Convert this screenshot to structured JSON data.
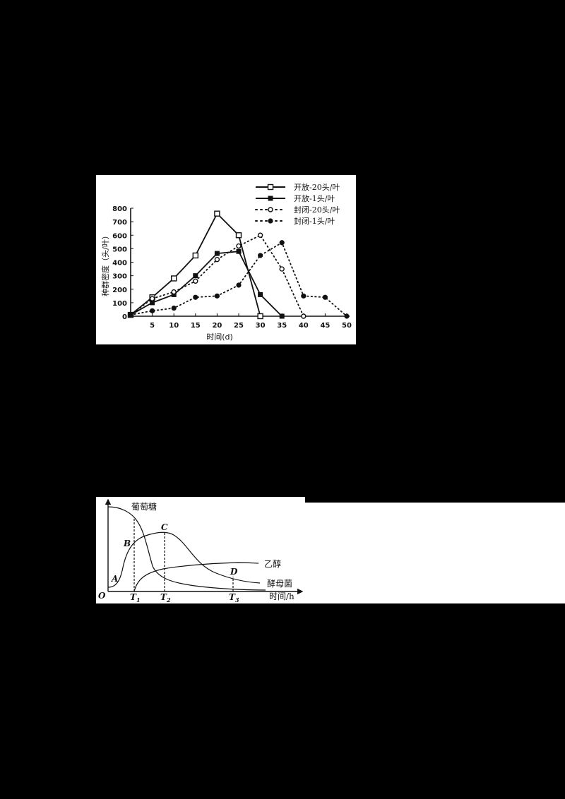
{
  "chart_data": [
    {
      "type": "line",
      "title": "",
      "xlabel": "时间(d)",
      "ylabel": "种群密度（头/叶）",
      "xlim": [
        0,
        50
      ],
      "ylim": [
        0,
        800
      ],
      "x_ticks": [
        5,
        10,
        15,
        20,
        25,
        30,
        35,
        40,
        45,
        50
      ],
      "y_ticks": [
        0,
        100,
        200,
        300,
        400,
        500,
        600,
        700,
        800
      ],
      "grid": false,
      "legend_position": "top-right",
      "series": [
        {
          "name": "开放-20头/叶",
          "style": "solid",
          "marker": "open-square",
          "x": [
            0,
            5,
            10,
            15,
            20,
            25,
            30
          ],
          "values": [
            10,
            140,
            280,
            450,
            760,
            600,
            0
          ]
        },
        {
          "name": "开放-1头/叶",
          "style": "solid",
          "marker": "filled-square",
          "x": [
            0,
            5,
            10,
            15,
            20,
            25,
            30,
            35
          ],
          "values": [
            10,
            100,
            160,
            300,
            465,
            480,
            160,
            0
          ]
        },
        {
          "name": "封闭-20头/叶",
          "style": "dotted",
          "marker": "open-circle",
          "x": [
            0,
            5,
            10,
            15,
            20,
            25,
            30,
            35,
            40
          ],
          "values": [
            10,
            130,
            180,
            260,
            420,
            520,
            600,
            350,
            0
          ]
        },
        {
          "name": "封闭-1头/叶",
          "style": "dotted",
          "marker": "filled-circle",
          "x": [
            0,
            5,
            10,
            15,
            20,
            25,
            30,
            35,
            40,
            45,
            50
          ],
          "values": [
            10,
            40,
            60,
            140,
            150,
            230,
            450,
            545,
            150,
            140,
            0
          ]
        }
      ]
    },
    {
      "type": "line",
      "title": "",
      "xlabel": "时间/h",
      "ylabel": "",
      "origin_label": "O",
      "x_markers": [
        "T1",
        "T2",
        "T3"
      ],
      "point_labels": [
        "A",
        "B",
        "C",
        "D"
      ],
      "series": [
        {
          "name": "葡萄糖",
          "shape": "starts high, declines steeply after T1, levels near baseline"
        },
        {
          "name": "酵母菌",
          "shape": "rises through A and B, peaks at C (T2), declines through D (T3)"
        },
        {
          "name": "乙醇",
          "shape": "starts at T1, rises then plateaus"
        }
      ]
    }
  ],
  "chart1": {
    "y_axis_title": "种群密度（头/叶）",
    "x_axis_title": "时间(d)",
    "x_ticks": [
      "5",
      "10",
      "15",
      "20",
      "25",
      "30",
      "35",
      "40",
      "45",
      "50"
    ],
    "y_ticks": [
      "0",
      "100",
      "200",
      "300",
      "400",
      "500",
      "600",
      "700",
      "800"
    ],
    "legend": [
      "开放-20头/叶",
      "开放-1头/叶",
      "封闭-20头/叶",
      "封闭-1头/叶"
    ]
  },
  "chart2": {
    "labels": {
      "glucose": "葡萄糖",
      "ethanol": "乙醇",
      "yeast": "酵母菌",
      "x_axis": "时间/h",
      "origin": "O",
      "A": "A",
      "B": "B",
      "C": "C",
      "D": "D",
      "T": "T",
      "T1_sub": "1",
      "T2_sub": "2",
      "T3_sub": "3"
    }
  },
  "colors": {
    "background": "#000000",
    "panel": "#ffffff",
    "ink": "#111111"
  }
}
